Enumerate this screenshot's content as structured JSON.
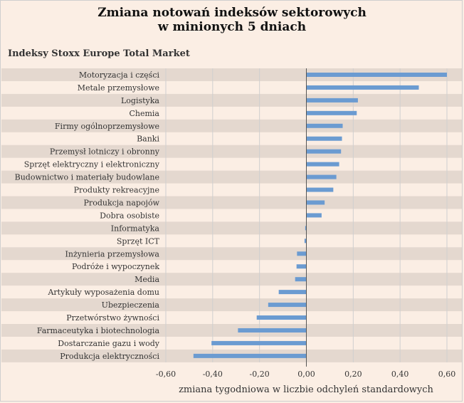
{
  "chart_data": {
    "type": "bar",
    "orientation": "horizontal",
    "title_line1": "Zmiana notowań indeksów sektorowych",
    "title_line2": "w minionych 5 dniach",
    "subtitle": "Indeksy Stoxx Europe Total Market",
    "xlabel": "zmiana tygodniowa w liczbie odchyleń standardowych",
    "xlim": [
      -0.6,
      0.6
    ],
    "xticks": [
      "-0,60",
      "-0,40",
      "-0,20",
      "0,00",
      "0,20",
      "0,40",
      "0,60"
    ],
    "xtick_values": [
      -0.6,
      -0.4,
      -0.2,
      0.0,
      0.2,
      0.4,
      0.6
    ],
    "categories": [
      "Motoryzacja i części",
      "Metale przemysłowe",
      "Logistyka",
      "Chemia",
      "Firmy ogólnoprzemysłowe",
      "Banki",
      "Przemysł lotniczy i obronny",
      "Sprzęt elektryczny i elektroniczny",
      "Budownictwo i materiały budowlane",
      "Produkty rekreacyjne",
      "Produkcja napojów",
      "Dobra osobiste",
      "Informatyka",
      "Sprzęt ICT",
      "Inżynieria przemysłowa",
      "Podróże i wypoczynek",
      "Media",
      "Artykuły wyposażenia domu",
      "Ubezpieczenia",
      "Przetwórstwo żywności",
      "Farmaceutyka i biotechnologia",
      "Dostarczanie gazu i wody",
      "Produkcja elektryczności"
    ],
    "values": [
      0.6,
      0.48,
      0.22,
      0.215,
      0.155,
      0.152,
      0.148,
      0.14,
      0.128,
      0.115,
      0.078,
      0.065,
      -0.005,
      -0.008,
      -0.04,
      -0.042,
      -0.048,
      -0.118,
      -0.163,
      -0.212,
      -0.292,
      -0.405,
      -0.482
    ],
    "colors": {
      "bar": "#6b9bd1",
      "band": "#e4d8cf",
      "background": "#fbeee4",
      "grid": "#cfcfcf",
      "axis": "#555555"
    },
    "grid": true,
    "alternating_row_bands": true
  }
}
